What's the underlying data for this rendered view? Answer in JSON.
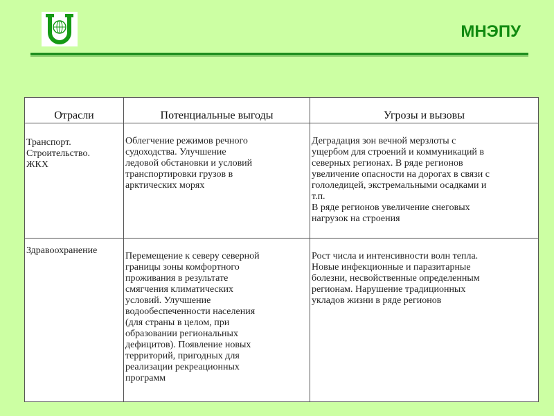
{
  "header": {
    "logo_icon": "university-u-globe-logo",
    "brand": "МНЭПУ",
    "accent_color": "#108a10"
  },
  "table": {
    "columns": [
      "Отрасли",
      "Потенциальные выгоды",
      "Угрозы и вызовы"
    ],
    "rows": [
      {
        "sector": "Транспорт.\nСтроительство.\nЖКХ",
        "benefits": "Облегчение режимов речного\nсудоходства. Улучшение\nледовой обстановки и условий\nтранспортировки грузов в\nарктических морях",
        "threats": "Деградация зон вечной мерзлоты с\nущербом для строений и коммуникаций в\nсеверных регионах. В ряде регионов\nувеличение опасности на дорогах в связи с\nгололедицей, экстремальными осадками и\nт.п.\nВ ряде регионов увеличение снеговых\nнагрузок на  строения"
      },
      {
        "sector": "Здравоохранение",
        "benefits": "Перемещение к северу северной\nграницы зоны комфортного\nпроживания в результате\nсмягчения климатических\nусловий. Улучшение\nводообеспеченности населения\n(для страны в целом, при\nобразовании региональных\nдефицитов). Появление новых\nтерриторий, пригодных для\nреализации рекреационных\nпрограмм",
        "threats": "Рост числа и интенсивности волн тепла.\nНовые инфекционные и паразитарные\nболезни, несвойственные определенным\nрегионам. Нарушение традиционных\nукладов жизни в ряде регионов"
      }
    ]
  }
}
